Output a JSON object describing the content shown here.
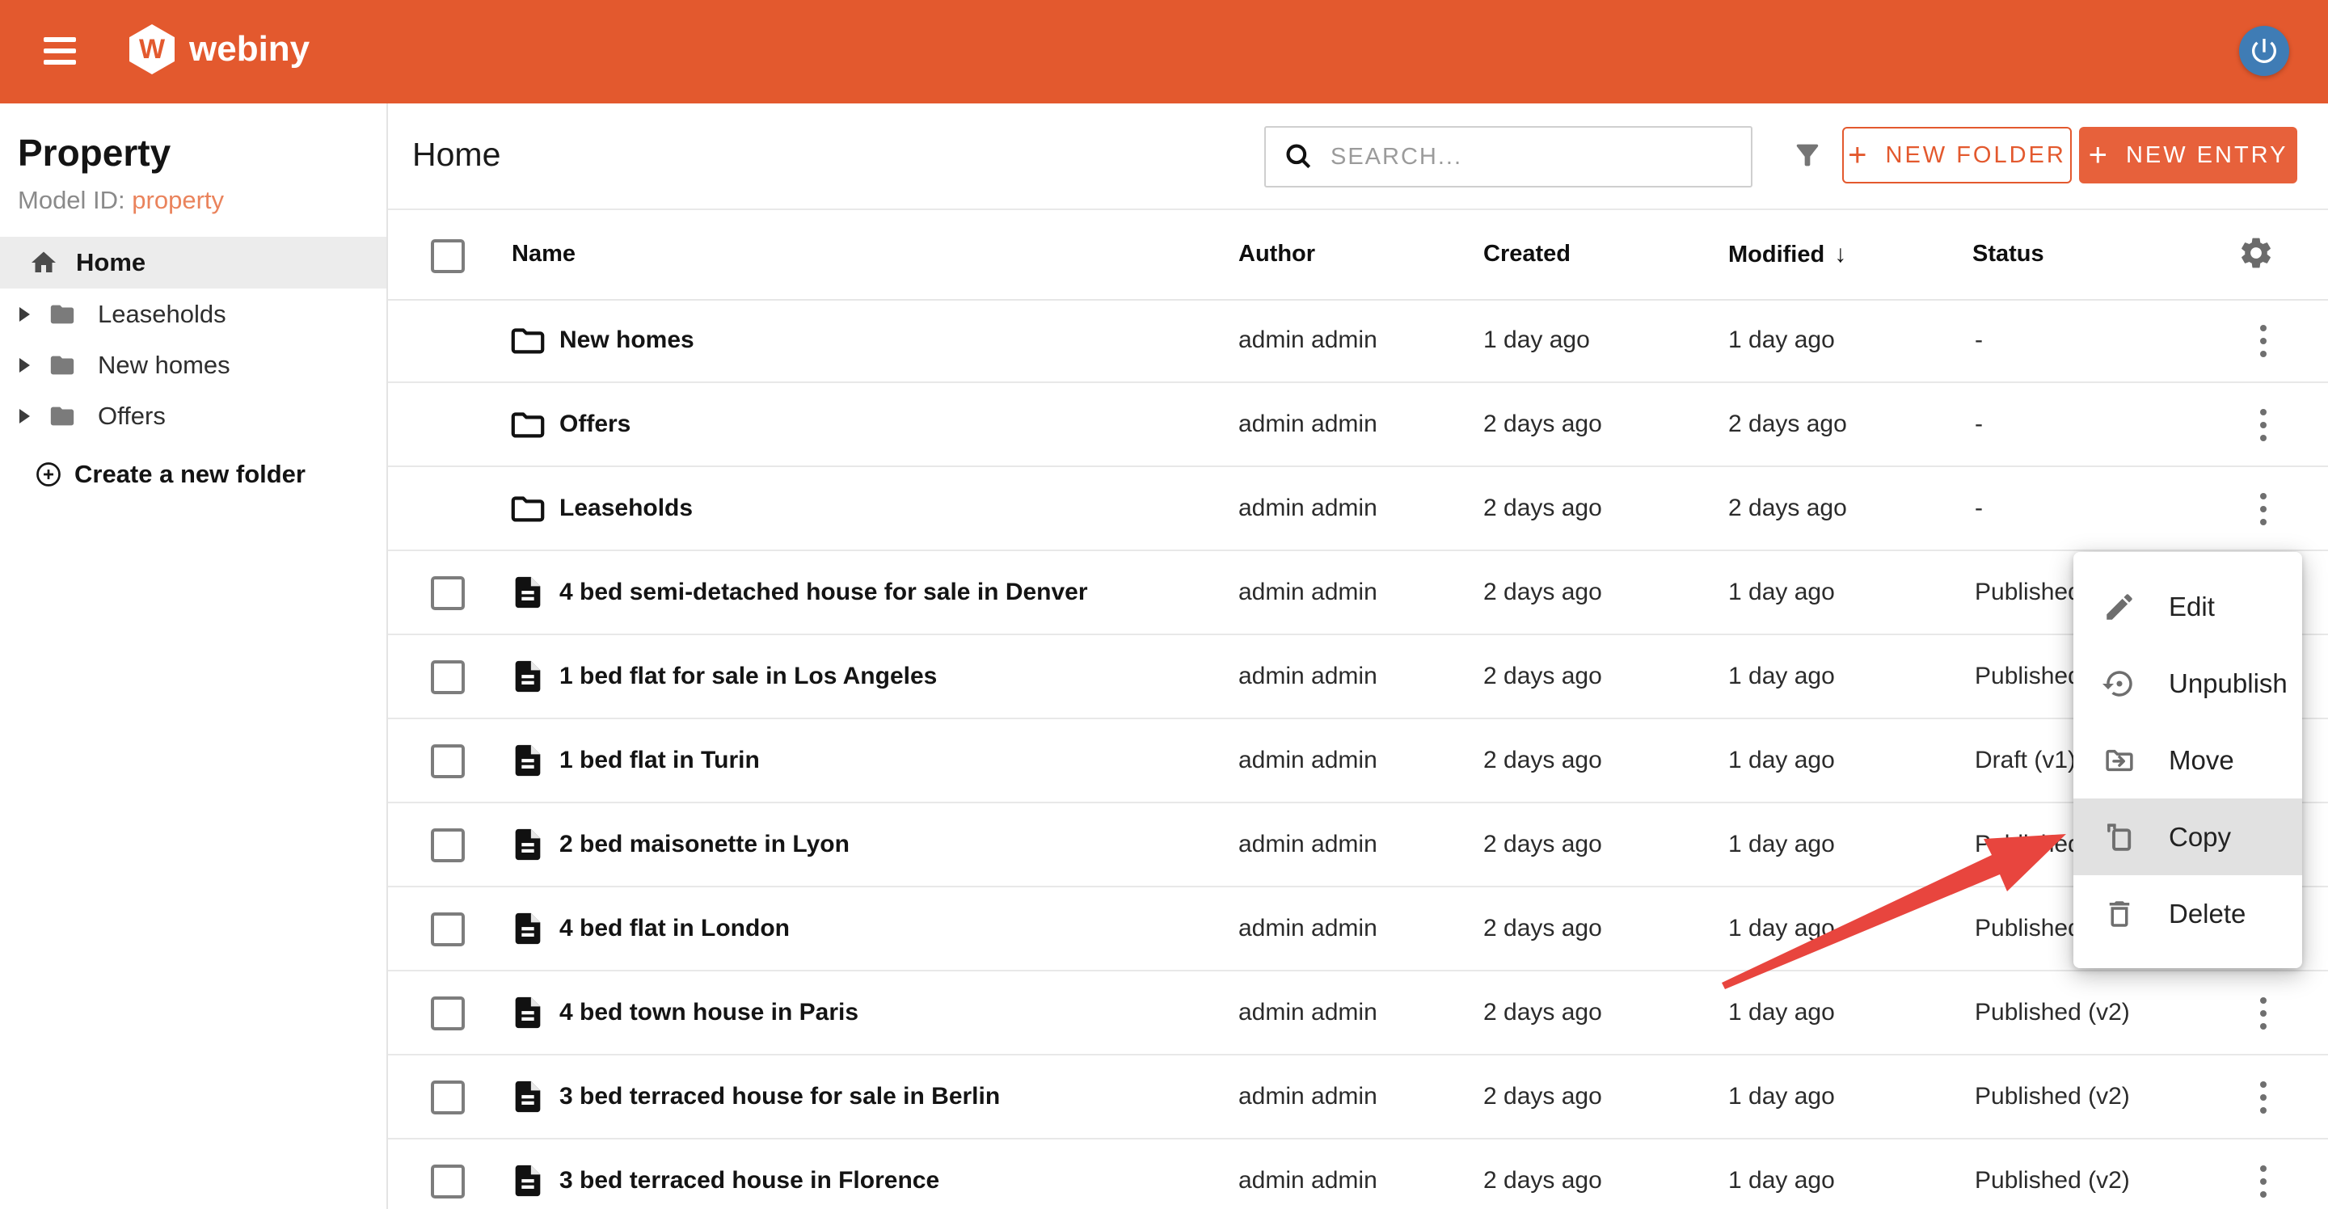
{
  "topbar": {
    "brand": "webiny",
    "logo_letter": "W"
  },
  "sidebar": {
    "model_name": "Property",
    "model_id_label": "Model ID:",
    "model_id_value": "property",
    "home_label": "Home",
    "folders": [
      {
        "label": "Leaseholds"
      },
      {
        "label": "New homes"
      },
      {
        "label": "Offers"
      }
    ],
    "create_folder_label": "Create a new folder"
  },
  "toolbar": {
    "title": "Home",
    "search_placeholder": "SEARCH...",
    "new_folder_label": "NEW FOLDER",
    "new_entry_label": "NEW ENTRY",
    "plus_glyph": "+"
  },
  "table": {
    "columns": {
      "name": "Name",
      "author": "Author",
      "created": "Created",
      "modified": "Modified",
      "status": "Status"
    },
    "sorted_column": "Modified",
    "sort_indicator": "↓",
    "rows": [
      {
        "type": "folder",
        "name": "New homes",
        "author": "admin admin",
        "created": "1 day ago",
        "modified": "1 day ago",
        "status": "-"
      },
      {
        "type": "folder",
        "name": "Offers",
        "author": "admin admin",
        "created": "2 days ago",
        "modified": "2 days ago",
        "status": "-"
      },
      {
        "type": "folder",
        "name": "Leaseholds",
        "author": "admin admin",
        "created": "2 days ago",
        "modified": "2 days ago",
        "status": "-"
      },
      {
        "type": "entry",
        "name": "4 bed semi-detached house for sale in Denver",
        "author": "admin admin",
        "created": "2 days ago",
        "modified": "1 day ago",
        "status": "Published"
      },
      {
        "type": "entry",
        "name": "1 bed flat for sale in Los Angeles",
        "author": "admin admin",
        "created": "2 days ago",
        "modified": "1 day ago",
        "status": "Published"
      },
      {
        "type": "entry",
        "name": "1 bed flat in Turin",
        "author": "admin admin",
        "created": "2 days ago",
        "modified": "1 day ago",
        "status": "Draft (v1)"
      },
      {
        "type": "entry",
        "name": "2 bed maisonette in Lyon",
        "author": "admin admin",
        "created": "2 days ago",
        "modified": "1 day ago",
        "status": "Published"
      },
      {
        "type": "entry",
        "name": "4 bed flat in London",
        "author": "admin admin",
        "created": "2 days ago",
        "modified": "1 day ago",
        "status": "Published"
      },
      {
        "type": "entry",
        "name": "4 bed town house in Paris",
        "author": "admin admin",
        "created": "2 days ago",
        "modified": "1 day ago",
        "status": "Published (v2)"
      },
      {
        "type": "entry",
        "name": "3 bed terraced house for sale in Berlin",
        "author": "admin admin",
        "created": "2 days ago",
        "modified": "1 day ago",
        "status": "Published (v2)"
      },
      {
        "type": "entry",
        "name": "3 bed terraced house in Florence",
        "author": "admin admin",
        "created": "2 days ago",
        "modified": "1 day ago",
        "status": "Published (v2)"
      }
    ]
  },
  "context_menu": {
    "items": [
      {
        "label": "Edit",
        "icon": "pencil-icon",
        "highlighted": false
      },
      {
        "label": "Unpublish",
        "icon": "unpublish-icon",
        "highlighted": false
      },
      {
        "label": "Move",
        "icon": "move-folder-icon",
        "highlighted": false
      },
      {
        "label": "Copy",
        "icon": "copy-icon",
        "highlighted": true
      },
      {
        "label": "Delete",
        "icon": "trash-icon",
        "highlighted": false
      }
    ]
  },
  "colors": {
    "accent_orange": "#e3592e",
    "button_orange": "#e7613b",
    "link_orange": "#ea835c",
    "avatar_blue": "#3f7cb5",
    "arrow_red": "#e8453e"
  }
}
